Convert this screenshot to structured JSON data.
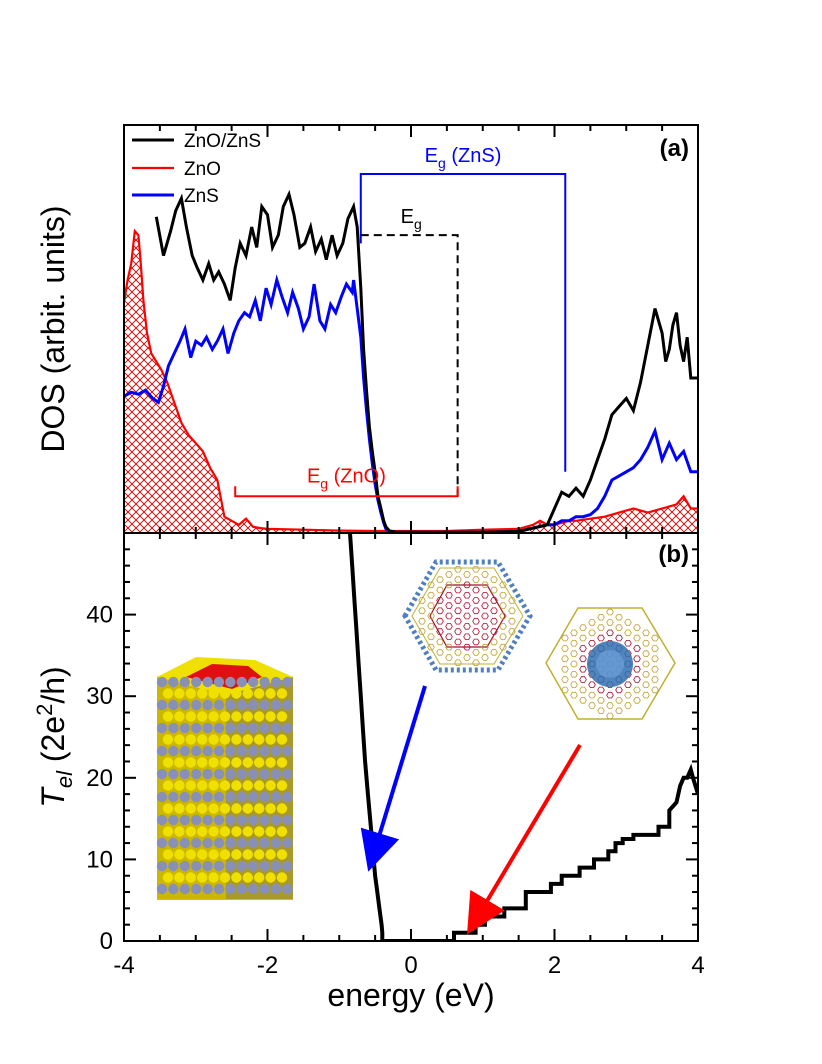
{
  "chart_data": [
    {
      "panel": "(a)",
      "type": "line",
      "ylabel": "DOS (arbit. units)",
      "xlim": [
        -4,
        4
      ],
      "ylim": [
        0,
        1.0
      ],
      "yticks_labeled": false,
      "legend": {
        "position": "top-left",
        "entries": [
          "ZnO/ZnS",
          "ZnO",
          "ZnS"
        ]
      },
      "series": [
        {
          "name": "ZnO/ZnS",
          "color": "#000000",
          "x": [
            -3.55,
            -3.45,
            -3.35,
            -3.28,
            -3.2,
            -3.13,
            -3.05,
            -2.98,
            -2.9,
            -2.82,
            -2.75,
            -2.68,
            -2.6,
            -2.52,
            -2.45,
            -2.38,
            -2.3,
            -2.22,
            -2.15,
            -2.08,
            -2.0,
            -1.93,
            -1.85,
            -1.78,
            -1.7,
            -1.63,
            -1.55,
            -1.48,
            -1.4,
            -1.33,
            -1.25,
            -1.18,
            -1.1,
            -1.03,
            -0.95,
            -0.88,
            -0.8,
            -0.75,
            -0.7,
            -0.66,
            -0.62,
            -0.58,
            -0.54,
            -0.5,
            -0.46,
            -0.42,
            -0.38,
            -0.35,
            -0.3,
            -0.2,
            0.0,
            0.5,
            1.0,
            1.5,
            1.9,
            2.0,
            2.1,
            2.2,
            2.3,
            2.4,
            2.5,
            2.6,
            2.7,
            2.8,
            2.9,
            3.0,
            3.1,
            3.2,
            3.3,
            3.4,
            3.5,
            3.55,
            3.6,
            3.65,
            3.7,
            3.75,
            3.8,
            3.85,
            3.9,
            4.0
          ],
          "y": [
            0.775,
            0.68,
            0.74,
            0.79,
            0.82,
            0.75,
            0.68,
            0.65,
            0.62,
            0.66,
            0.62,
            0.64,
            0.61,
            0.57,
            0.65,
            0.71,
            0.68,
            0.75,
            0.7,
            0.8,
            0.78,
            0.7,
            0.73,
            0.8,
            0.83,
            0.78,
            0.7,
            0.71,
            0.75,
            0.69,
            0.72,
            0.67,
            0.73,
            0.68,
            0.71,
            0.77,
            0.8,
            0.75,
            0.6,
            0.45,
            0.35,
            0.26,
            0.2,
            0.15,
            0.09,
            0.06,
            0.03,
            0.015,
            0.005,
            0.002,
            0.002,
            0.002,
            0.002,
            0.004,
            0.02,
            0.06,
            0.1,
            0.09,
            0.11,
            0.09,
            0.13,
            0.18,
            0.23,
            0.29,
            0.31,
            0.33,
            0.3,
            0.37,
            0.46,
            0.55,
            0.49,
            0.42,
            0.45,
            0.51,
            0.54,
            0.46,
            0.42,
            0.48,
            0.38,
            0.38
          ]
        },
        {
          "name": "ZnO",
          "color": "#ff0000",
          "x": [
            -4.0,
            -3.95,
            -3.9,
            -3.85,
            -3.8,
            -3.77,
            -3.73,
            -3.68,
            -3.62,
            -3.55,
            -3.48,
            -3.4,
            -3.3,
            -3.2,
            -3.1,
            -3.0,
            -2.9,
            -2.8,
            -2.7,
            -2.6,
            -2.5,
            -2.4,
            -2.3,
            -2.2,
            -2.1,
            -2.0,
            -1.5,
            -1.0,
            -0.5,
            0.0,
            0.5,
            1.0,
            1.5,
            1.7,
            1.8,
            1.9,
            2.0,
            2.1,
            2.2,
            2.3,
            2.5,
            2.7,
            2.9,
            3.1,
            3.3,
            3.5,
            3.7,
            3.8,
            3.9,
            4.0
          ],
          "y": [
            0.565,
            0.62,
            0.66,
            0.74,
            0.73,
            0.67,
            0.57,
            0.49,
            0.44,
            0.42,
            0.4,
            0.37,
            0.32,
            0.27,
            0.24,
            0.22,
            0.2,
            0.16,
            0.13,
            0.04,
            0.03,
            0.02,
            0.035,
            0.015,
            0.012,
            0.01,
            0.008,
            0.006,
            0.005,
            0.005,
            0.005,
            0.008,
            0.01,
            0.02,
            0.03,
            0.02,
            0.02,
            0.025,
            0.03,
            0.03,
            0.035,
            0.04,
            0.05,
            0.06,
            0.05,
            0.06,
            0.07,
            0.09,
            0.06,
            0.06
          ]
        },
        {
          "name": "ZnS",
          "color": "#0000ff",
          "x": [
            -4.0,
            -3.9,
            -3.8,
            -3.7,
            -3.6,
            -3.52,
            -3.45,
            -3.38,
            -3.3,
            -3.22,
            -3.15,
            -3.07,
            -3.0,
            -2.92,
            -2.85,
            -2.77,
            -2.7,
            -2.62,
            -2.55,
            -2.47,
            -2.4,
            -2.32,
            -2.25,
            -2.17,
            -2.1,
            -2.02,
            -1.95,
            -1.87,
            -1.8,
            -1.72,
            -1.65,
            -1.57,
            -1.5,
            -1.42,
            -1.35,
            -1.27,
            -1.2,
            -1.12,
            -1.05,
            -0.97,
            -0.9,
            -0.82,
            -0.8,
            -0.75,
            -0.7,
            -0.66,
            -0.62,
            -0.58,
            -0.54,
            -0.5,
            -0.46,
            -0.42,
            -0.38,
            -0.35,
            -0.3,
            -0.2,
            0.0,
            0.5,
            1.0,
            1.5,
            1.9,
            2.0,
            2.1,
            2.2,
            2.3,
            2.4,
            2.5,
            2.6,
            2.7,
            2.8,
            2.9,
            3.0,
            3.1,
            3.2,
            3.3,
            3.4,
            3.5,
            3.6,
            3.7,
            3.8,
            3.9,
            4.0
          ],
          "y": [
            0.335,
            0.345,
            0.34,
            0.35,
            0.33,
            0.32,
            0.36,
            0.41,
            0.44,
            0.47,
            0.5,
            0.43,
            0.47,
            0.46,
            0.48,
            0.45,
            0.47,
            0.5,
            0.44,
            0.49,
            0.52,
            0.54,
            0.53,
            0.57,
            0.52,
            0.6,
            0.56,
            0.62,
            0.58,
            0.54,
            0.59,
            0.55,
            0.5,
            0.53,
            0.61,
            0.52,
            0.5,
            0.56,
            0.54,
            0.58,
            0.61,
            0.59,
            0.62,
            0.55,
            0.48,
            0.38,
            0.3,
            0.23,
            0.17,
            0.12,
            0.08,
            0.05,
            0.025,
            0.01,
            0.003,
            0.002,
            0.002,
            0.002,
            0.002,
            0.004,
            0.02,
            0.02,
            0.03,
            0.03,
            0.04,
            0.04,
            0.045,
            0.06,
            0.09,
            0.13,
            0.14,
            0.15,
            0.16,
            0.18,
            0.21,
            0.25,
            0.18,
            0.22,
            0.18,
            0.2,
            0.15,
            0.15
          ]
        }
      ],
      "annotations": [
        {
          "label_main": "E",
          "label_sub": "g",
          "label_rest": " (ZnS)",
          "color": "#0000ff",
          "from": -0.7,
          "to": 2.15,
          "level": 0.88,
          "style": "solid"
        },
        {
          "label_main": "E",
          "label_sub": "g",
          "label_rest": "",
          "color": "#000000",
          "from": -0.7,
          "to": 0.65,
          "level": 0.73,
          "style": "dashed"
        },
        {
          "label_main": "E",
          "label_sub": "g",
          "label_rest": " (ZnO)",
          "color": "#ff0000",
          "from": -2.45,
          "to": 0.65,
          "level": 0.09,
          "style": "solid"
        }
      ]
    },
    {
      "panel": "(b)",
      "type": "line",
      "xlabel": "energy (eV)",
      "ylabel_main": "T",
      "ylabel_sub": "el",
      "ylabel_rest": "  (2e",
      "ylabel_sup": "2",
      "ylabel_end": "/h)",
      "xlim": [
        -4,
        4
      ],
      "ylim": [
        0,
        50
      ],
      "xticks": [
        -4,
        -2,
        0,
        2,
        4
      ],
      "yticks": [
        0,
        10,
        20,
        30,
        40
      ],
      "series": [
        {
          "name": "T_el",
          "color": "#000000",
          "x": [
            -0.85,
            -0.82,
            -0.79,
            -0.76,
            -0.73,
            -0.7,
            -0.67,
            -0.64,
            -0.6,
            -0.57,
            -0.54,
            -0.5,
            -0.47,
            -0.44,
            -0.41,
            -0.4,
            -0.4,
            0.0,
            0.6,
            0.6,
            0.9,
            0.9,
            1.03,
            1.03,
            1.3,
            1.3,
            1.6,
            1.6,
            1.95,
            1.95,
            2.1,
            2.1,
            2.35,
            2.35,
            2.55,
            2.55,
            2.75,
            2.75,
            2.85,
            2.85,
            2.95,
            2.95,
            3.1,
            3.1,
            3.25,
            3.25,
            3.45,
            3.45,
            3.6,
            3.6,
            3.7,
            3.75,
            3.8,
            3.85,
            3.9,
            3.93,
            4.0
          ],
          "y": [
            50,
            46,
            42,
            38,
            34,
            30,
            26,
            22,
            18,
            15,
            12,
            8,
            6,
            4,
            2,
            1,
            0,
            0,
            0,
            1,
            1,
            2,
            2,
            3,
            3,
            4,
            4,
            6,
            6,
            7,
            7,
            8,
            8,
            9,
            9,
            10,
            10,
            11,
            11,
            12,
            12,
            12.5,
            12.5,
            13,
            13,
            13,
            13,
            14,
            14,
            16,
            17,
            19,
            20,
            20,
            21,
            20,
            18
          ]
        }
      ],
      "annotations": [
        {
          "arrow_color": "#0000ff",
          "target_x": -0.35,
          "target_y": 10
        },
        {
          "arrow_color": "#ff0000",
          "target_x": 0.7,
          "target_y": 1.5
        }
      ]
    }
  ]
}
